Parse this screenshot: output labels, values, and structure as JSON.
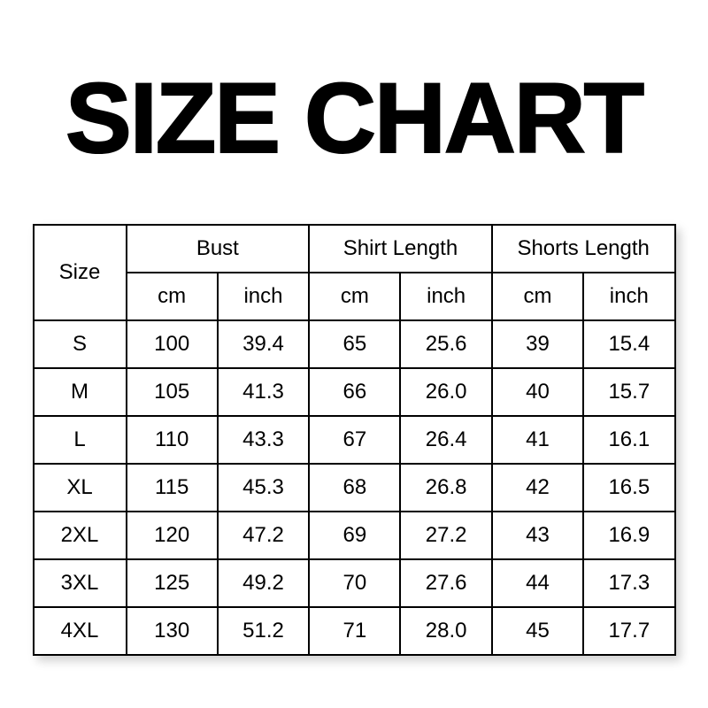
{
  "title": "SIZE CHART",
  "chart_data": {
    "type": "table",
    "title": "SIZE CHART",
    "header": {
      "size": "Size",
      "groups": [
        "Bust",
        "Shirt Length",
        "Shorts Length"
      ],
      "units": [
        "cm",
        "inch",
        "cm",
        "inch",
        "cm",
        "inch"
      ]
    },
    "columns": [
      "Size",
      "Bust cm",
      "Bust inch",
      "Shirt Length cm",
      "Shirt Length inch",
      "Shorts Length cm",
      "Shorts Length inch"
    ],
    "rows": [
      {
        "size": "S",
        "values": [
          "100",
          "39.4",
          "65",
          "25.6",
          "39",
          "15.4"
        ]
      },
      {
        "size": "M",
        "values": [
          "105",
          "41.3",
          "66",
          "26.0",
          "40",
          "15.7"
        ]
      },
      {
        "size": "L",
        "values": [
          "110",
          "43.3",
          "67",
          "26.4",
          "41",
          "16.1"
        ]
      },
      {
        "size": "XL",
        "values": [
          "115",
          "45.3",
          "68",
          "26.8",
          "42",
          "16.5"
        ]
      },
      {
        "size": "2XL",
        "values": [
          "120",
          "47.2",
          "69",
          "27.2",
          "43",
          "16.9"
        ]
      },
      {
        "size": "3XL",
        "values": [
          "125",
          "49.2",
          "70",
          "27.6",
          "44",
          "17.3"
        ]
      },
      {
        "size": "4XL",
        "values": [
          "130",
          "51.2",
          "71",
          "28.0",
          "45",
          "17.7"
        ]
      }
    ]
  },
  "colors": {
    "text": "#000000",
    "border": "#000000",
    "background": "#ffffff"
  }
}
